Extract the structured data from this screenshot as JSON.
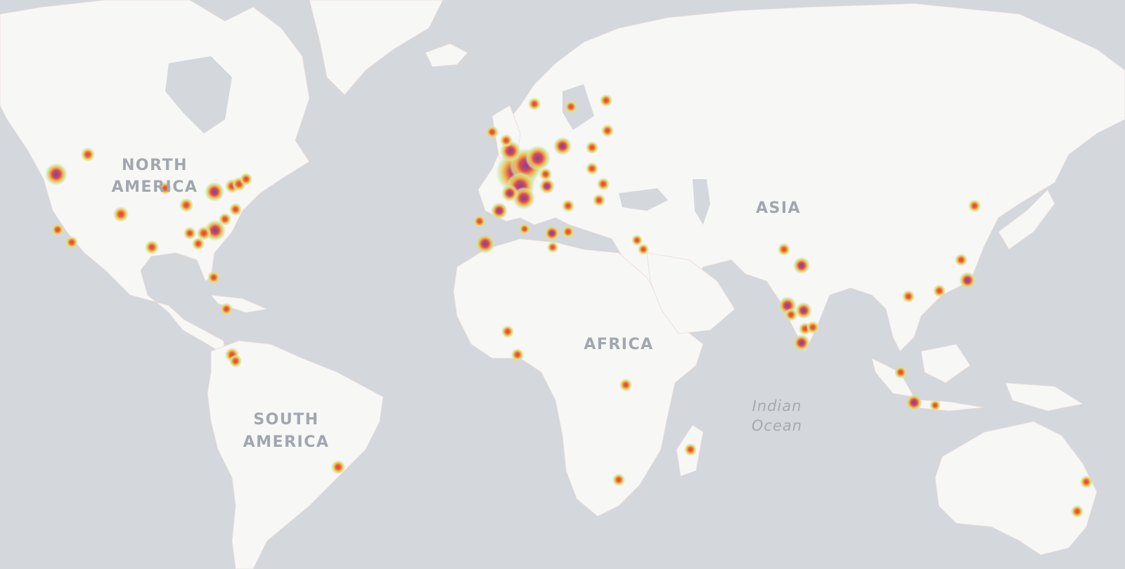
{
  "map": {
    "labels": {
      "north_america": [
        "NORTH",
        "AMERICA"
      ],
      "south_america": [
        "SOUTH",
        "AMERICA"
      ],
      "africa": "AFRICA",
      "asia": "ASIA",
      "indian_ocean": [
        "Indian",
        "Ocean"
      ]
    },
    "colors": {
      "water": "#d4d7db",
      "land": "#f7f7f6",
      "borders": "#eadada",
      "heat_low": "#cfe8a8",
      "heat_mid": "#f3c24a",
      "heat_high": "#e0584c",
      "heat_peak": "#8a3d9a"
    },
    "heat_clusters": [
      {
        "region": "Western Europe",
        "intensity": 1.0
      },
      {
        "region": "North America east",
        "intensity": 0.55
      },
      {
        "region": "India",
        "intensity": 0.5
      },
      {
        "region": "Southeast Asia",
        "intensity": 0.3
      },
      {
        "region": "Africa",
        "intensity": 0.2
      },
      {
        "region": "South America",
        "intensity": 0.2
      },
      {
        "region": "Australia",
        "intensity": 0.2
      }
    ]
  }
}
